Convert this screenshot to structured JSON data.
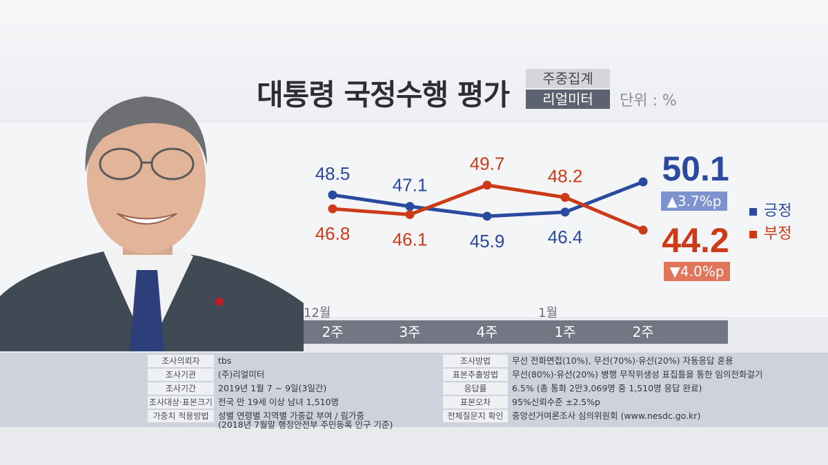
{
  "header": {
    "title": "대통령 국정수행 평가",
    "tag_top": "주중집계",
    "tag_bottom": "리얼미터",
    "unit": "단위 : %"
  },
  "colors": {
    "positive": "#2a4aa0",
    "negative": "#cc3a18",
    "positive_box": "#7d93d0",
    "negative_box": "#e0755a",
    "axis_bar": "#737784"
  },
  "chart_data": {
    "type": "line",
    "categories": [
      "2주",
      "3주",
      "4주",
      "1주",
      "2주"
    ],
    "month_labels": [
      {
        "label": "12월",
        "index": 0
      },
      {
        "label": "1월",
        "index": 3
      }
    ],
    "series": [
      {
        "name": "긍정",
        "values": [
          48.5,
          47.1,
          45.9,
          46.4,
          50.1
        ],
        "labels": [
          "48.5",
          "47.1",
          "45.9",
          "46.4",
          "50.1"
        ]
      },
      {
        "name": "부정",
        "values": [
          46.8,
          46.1,
          49.7,
          48.2,
          44.2
        ],
        "labels": [
          "46.8",
          "46.1",
          "49.7",
          "48.2",
          "44.2"
        ]
      }
    ],
    "latest_changes": [
      {
        "series": "긍정",
        "label": "▲3.7%p"
      },
      {
        "series": "부정",
        "label": "▼4.0%p"
      }
    ]
  },
  "legend": [
    {
      "label": "긍정"
    },
    {
      "label": "부정"
    }
  ],
  "survey_info": {
    "left": [
      {
        "label": "조사의뢰자",
        "value": "tbs"
      },
      {
        "label": "조사기관",
        "value": "(주)리얼미터"
      },
      {
        "label": "조사기간",
        "value": "2019년 1월 7 ~ 9일(3일간)"
      },
      {
        "label": "조사대상·표본크기",
        "value": "전국 만 19세 이상 남녀 1,510명"
      },
      {
        "label": "가중치 적용방법",
        "value": "성별 연령별 지역별 가중값 부여 / 림가중"
      }
    ],
    "left_note": "(2018년 7월말 행정안전부 주민등록 인구 기준)",
    "right": [
      {
        "label": "조사방법",
        "value": "무선 전화면접(10%), 무선(70%)·유선(20%) 자동응답 혼용"
      },
      {
        "label": "표본추출방법",
        "value": "무선(80%)·유선(20%) 병행 무작위생성 표집틀을 통한 임의전화걸기"
      },
      {
        "label": "응답률",
        "value": "6.5% (총 통화 2만3,069명 중 1,510명 응답 완료)"
      },
      {
        "label": "표본오차",
        "value": "95%신뢰수준 ±2.5%p"
      },
      {
        "label": "전체질문지 확인",
        "value": "중앙선거여론조사 심의위원회 (www.nesdc.go.kr)"
      }
    ]
  }
}
